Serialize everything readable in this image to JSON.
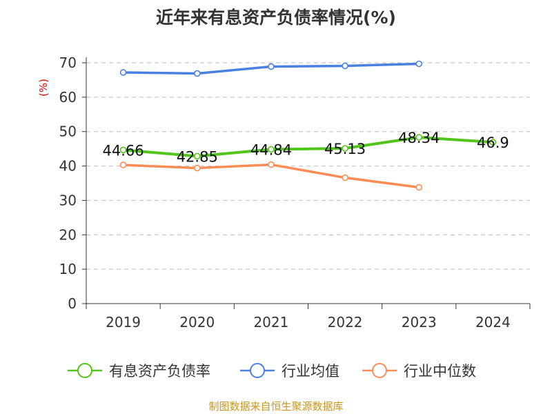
{
  "chart_data": {
    "type": "line",
    "title": "近年来有息资产负债率情况(%)",
    "ylabel": "(%)",
    "xlabel": "",
    "ylim": [
      0,
      70
    ],
    "yticks": [
      "0",
      "10",
      "20",
      "30",
      "40",
      "50",
      "60",
      "70"
    ],
    "categories": [
      "2019",
      "2020",
      "2021",
      "2022",
      "2023",
      "2024"
    ],
    "grid": true,
    "legend_position": "bottom",
    "series": [
      {
        "name": "有息资产负债率",
        "color": "#52c41a",
        "values": [
          44.66,
          42.85,
          44.84,
          45.13,
          48.34,
          46.9
        ],
        "labels": [
          "44.66",
          "42.85",
          "44.84",
          "45.13",
          "48.34",
          "46.9"
        ]
      },
      {
        "name": "行业均值",
        "color": "#4a80e0",
        "values": [
          67.2,
          66.9,
          68.9,
          69.1,
          69.7,
          null
        ]
      },
      {
        "name": "行业中位数",
        "color": "#ff8c55",
        "values": [
          40.3,
          39.4,
          40.4,
          36.6,
          33.8,
          null
        ]
      }
    ]
  },
  "source": "制图数据来自恒生聚源数据库"
}
